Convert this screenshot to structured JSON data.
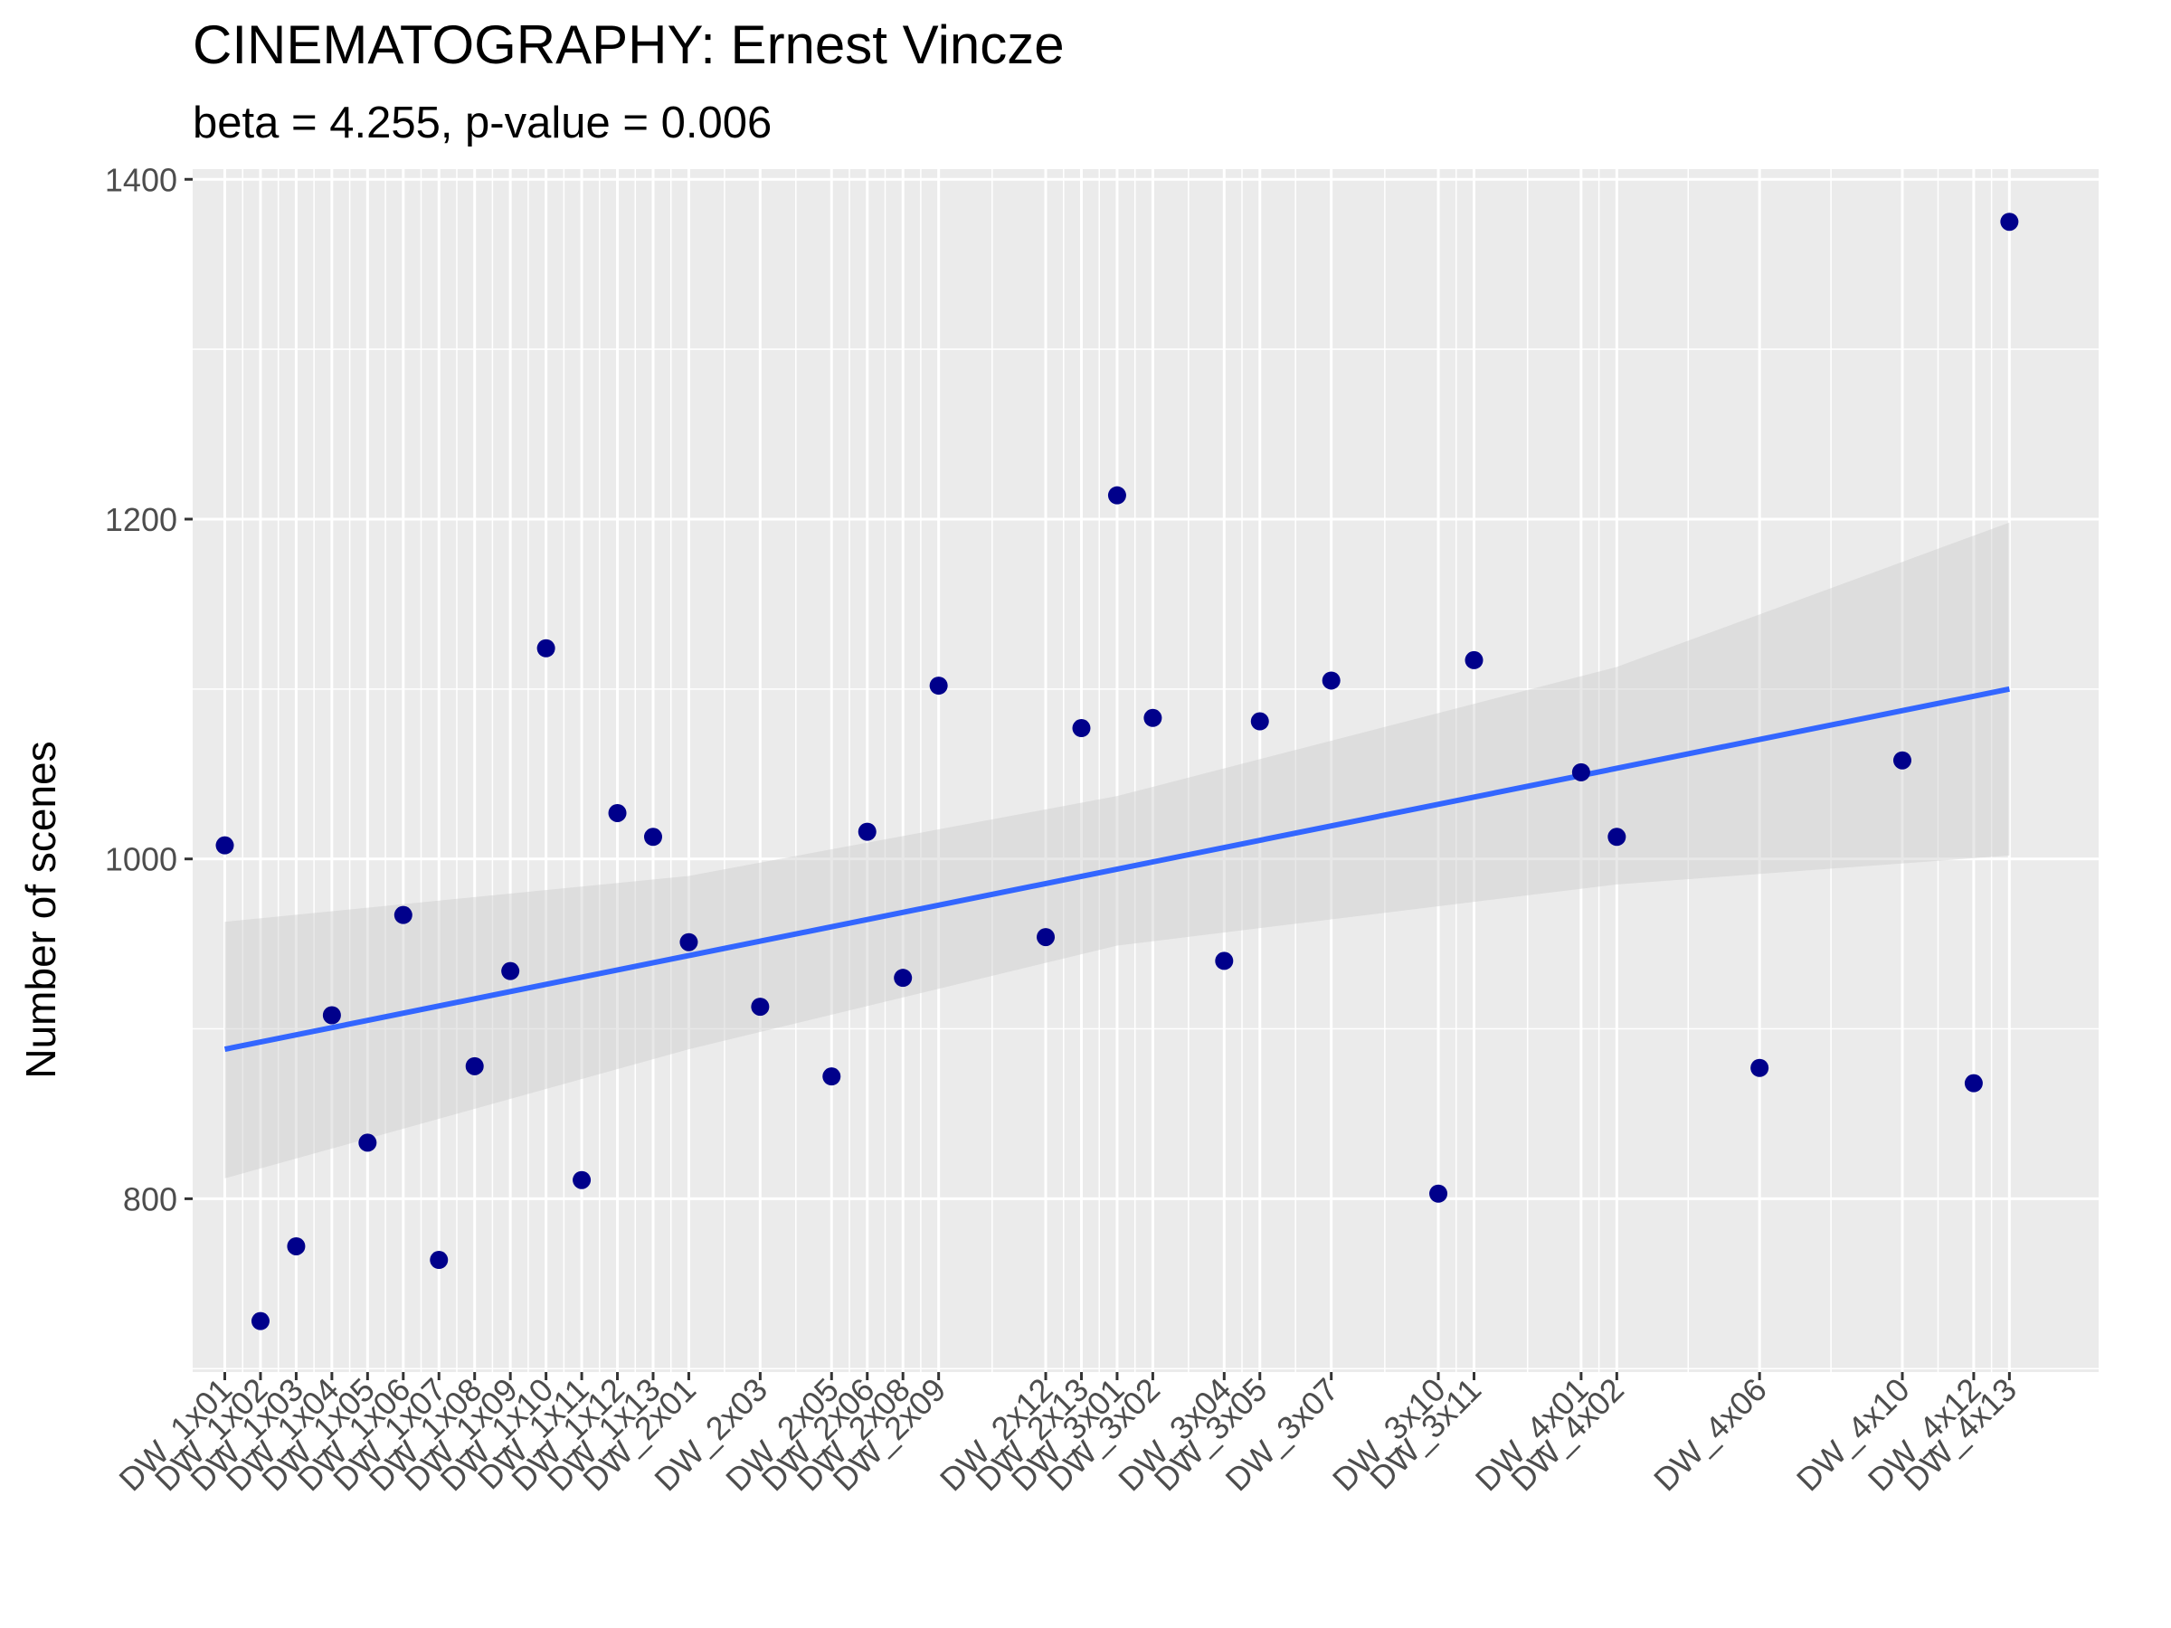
{
  "chart_data": {
    "type": "scatter",
    "title": "CINEMATOGRAPHY: Ernest Vincze",
    "subtitle": "beta = 4.255, p-value = 0.006",
    "xlabel": "",
    "ylabel": "Number of scenes",
    "ylim": [
      698,
      1406
    ],
    "yticks": [
      800,
      1000,
      1200,
      1400
    ],
    "x_index_range": [
      0.1,
      53.5
    ],
    "grid": true,
    "point_color": "#00008B",
    "line_color": "#3366FF",
    "band_color": "#cccccc",
    "panel_color": "#EBEBEB",
    "points": [
      {
        "label": "DW_1x01",
        "idx": 1,
        "y": 1008
      },
      {
        "label": "DW_1x02",
        "idx": 2,
        "y": 728
      },
      {
        "label": "DW_1x03",
        "idx": 3,
        "y": 772
      },
      {
        "label": "DW_1x04",
        "idx": 4,
        "y": 908
      },
      {
        "label": "DW_1x05",
        "idx": 5,
        "y": 833
      },
      {
        "label": "DW_1x06",
        "idx": 6,
        "y": 967
      },
      {
        "label": "DW_1x07",
        "idx": 7,
        "y": 764
      },
      {
        "label": "DW_1x08",
        "idx": 8,
        "y": 878
      },
      {
        "label": "DW_1x09",
        "idx": 9,
        "y": 934
      },
      {
        "label": "DW_1x10",
        "idx": 10,
        "y": 1124
      },
      {
        "label": "DW_1x11",
        "idx": 11,
        "y": 811
      },
      {
        "label": "DW_1x12",
        "idx": 12,
        "y": 1027
      },
      {
        "label": "DW_1x13",
        "idx": 13,
        "y": 1013
      },
      {
        "label": "DW_2x01",
        "idx": 14,
        "y": 951
      },
      {
        "label": "DW_2x03",
        "idx": 16,
        "y": 913
      },
      {
        "label": "DW_2x05",
        "idx": 18,
        "y": 872
      },
      {
        "label": "DW_2x06",
        "idx": 19,
        "y": 1016
      },
      {
        "label": "DW_2x08",
        "idx": 20,
        "y": 930
      },
      {
        "label": "DW_2x09",
        "idx": 21,
        "y": 1102
      },
      {
        "label": "DW_2x12",
        "idx": 24,
        "y": 954
      },
      {
        "label": "DW_2x13",
        "idx": 25,
        "y": 1077
      },
      {
        "label": "DW_3x01",
        "idx": 26,
        "y": 1214
      },
      {
        "label": "DW_3x02",
        "idx": 27,
        "y": 1083
      },
      {
        "label": "DW_3x04",
        "idx": 29,
        "y": 940
      },
      {
        "label": "DW_3x05",
        "idx": 30,
        "y": 1081
      },
      {
        "label": "DW_3x07",
        "idx": 32,
        "y": 1105
      },
      {
        "label": "DW_3x10",
        "idx": 35,
        "y": 803
      },
      {
        "label": "DW_3x11",
        "idx": 36,
        "y": 1117
      },
      {
        "label": "DW_4x01",
        "idx": 39,
        "y": 1051
      },
      {
        "label": "DW_4x02",
        "idx": 40,
        "y": 1013
      },
      {
        "label": "DW_4x06",
        "idx": 44,
        "y": 877
      },
      {
        "label": "DW_4x10",
        "idx": 48,
        "y": 1058
      },
      {
        "label": "DW_4x12",
        "idx": 50,
        "y": 868
      },
      {
        "label": "DW_4x13",
        "idx": 51,
        "y": 1375
      }
    ],
    "fit_line": {
      "x_start_idx": 1,
      "x_end_idx": 51,
      "y_start": 888,
      "y_end": 1100
    },
    "confidence_band": {
      "x_idx": [
        1,
        14,
        26,
        40,
        51
      ],
      "upper": [
        963,
        990,
        1037,
        1113,
        1198
      ],
      "lower": [
        812,
        888,
        949,
        985,
        1002
      ]
    }
  }
}
